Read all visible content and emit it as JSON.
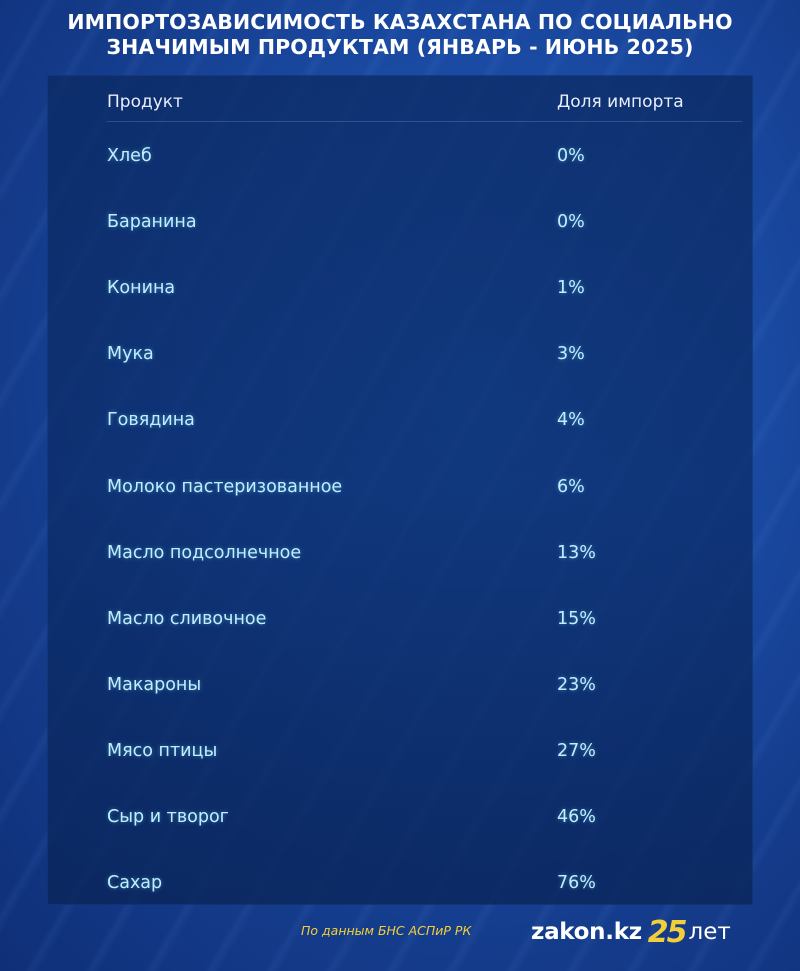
{
  "title": {
    "line1": "ИМПОРТОЗАВИСИМОСТЬ КАЗАХСТАНА ПО СОЦИАЛЬНО",
    "line2": "ЗНАЧИМЫМ ПРОДУКТАМ (ЯНВАРЬ - ИЮНЬ 2025)"
  },
  "table": {
    "headers": [
      "Продукт",
      "Доля импорта"
    ]
  },
  "chart_data": {
    "type": "table",
    "columns": [
      "Продукт",
      "Доля импорта"
    ],
    "rows": [
      {
        "product": "Хлеб",
        "share": "0%",
        "value": 0
      },
      {
        "product": "Баранина",
        "share": "0%",
        "value": 0
      },
      {
        "product": "Конина",
        "share": "1%",
        "value": 1
      },
      {
        "product": "Мука",
        "share": "3%",
        "value": 3
      },
      {
        "product": "Говядина",
        "share": "4%",
        "value": 4
      },
      {
        "product": "Молоко пастеризованное",
        "share": "6%",
        "value": 6
      },
      {
        "product": "Масло подсолнечное",
        "share": "13%",
        "value": 13
      },
      {
        "product": "Масло сливочное",
        "share": "15%",
        "value": 15
      },
      {
        "product": "Макароны",
        "share": "23%",
        "value": 23
      },
      {
        "product": "Мясо птицы",
        "share": "27%",
        "value": 27
      },
      {
        "product": "Сыр и творог",
        "share": "46%",
        "value": 46
      },
      {
        "product": "Сахар",
        "share": "76%",
        "value": 76
      }
    ]
  },
  "footer": {
    "source": "По данным БНС АСПиР РК",
    "logo_text": "zakon.kz",
    "logo_badge": "25",
    "logo_sub": "лет"
  },
  "colors": {
    "background": "#1a4aa3",
    "row_text": "#bfefff",
    "accent": "#f2cf3a"
  }
}
